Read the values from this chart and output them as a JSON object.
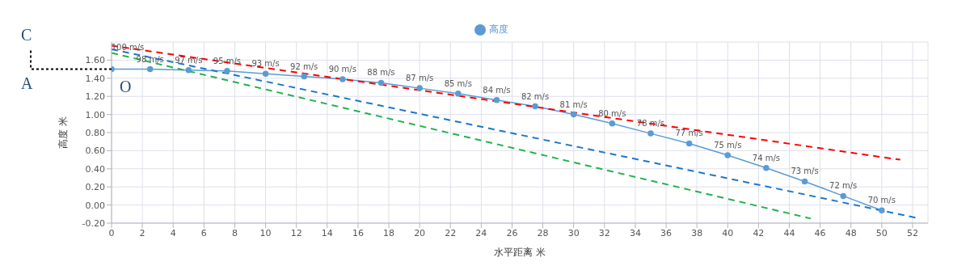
{
  "chart_data": {
    "type": "line",
    "xlabel": "水平距离 米",
    "ylabel": "高度 米",
    "xlim": [
      0,
      53
    ],
    "xticks": [
      0,
      2,
      4,
      6,
      8,
      10,
      12,
      14,
      16,
      18,
      20,
      22,
      24,
      26,
      28,
      30,
      32,
      34,
      36,
      38,
      40,
      42,
      44,
      46,
      48,
      50,
      52
    ],
    "ylim": [
      -0.2,
      1.8
    ],
    "yticks": [
      {
        "value": -0.2,
        "label": "-0.20"
      },
      {
        "value": 0,
        "label": "0.00"
      },
      {
        "value": 0.2,
        "label": "0.20"
      },
      {
        "value": 0.4,
        "label": "0.40"
      },
      {
        "value": 0.6,
        "label": "0.60"
      },
      {
        "value": 0.8,
        "label": "0.80"
      },
      {
        "value": 1,
        "label": "1.00"
      },
      {
        "value": 1.2,
        "label": "1.20"
      },
      {
        "value": 1.4,
        "label": "1.40"
      },
      {
        "value": 1.6,
        "label": "1.60"
      }
    ],
    "grid": true,
    "legend": "top",
    "annotations": [
      "C",
      "A",
      "O",
      {
        "text": "100 m/s",
        "x": 0,
        "y": 1.5
      },
      {
        "text": "98 m/s",
        "x": 2.5,
        "y": 1.5
      },
      {
        "text": "97 m/s",
        "x": 5,
        "y": 1.49
      },
      {
        "text": "95 m/s",
        "x": 7.5,
        "y": 1.48
      },
      {
        "text": "93 m/s",
        "x": 10,
        "y": 1.45
      },
      {
        "text": "92 m/s",
        "x": 12.5,
        "y": 1.42
      },
      {
        "text": "90 m/s",
        "x": 15,
        "y": 1.39
      },
      {
        "text": "88 m/s",
        "x": 17.5,
        "y": 1.35
      },
      {
        "text": "87 m/s",
        "x": 20,
        "y": 1.29
      },
      {
        "text": "85 m/s",
        "x": 22.5,
        "y": 1.23
      },
      {
        "text": "84 m/s",
        "x": 25,
        "y": 1.16
      },
      {
        "text": "82 m/s",
        "x": 27.5,
        "y": 1.09
      },
      {
        "text": "81 m/s",
        "x": 30,
        "y": 1.0
      },
      {
        "text": "80 m/s",
        "x": 32.5,
        "y": 0.9
      },
      {
        "text": "78 m/s",
        "x": 35,
        "y": 0.79
      },
      {
        "text": "77 m/s",
        "x": 37.5,
        "y": 0.68
      },
      {
        "text": "75 m/s",
        "x": 40,
        "y": 0.55
      },
      {
        "text": "74 m/s",
        "x": 42.5,
        "y": 0.41
      },
      {
        "text": "73 m/s",
        "x": 45,
        "y": 0.26
      },
      {
        "text": "72 m/s",
        "x": 47.5,
        "y": 0.1
      },
      {
        "text": "70 m/s",
        "x": 50,
        "y": -0.06
      }
    ],
    "series": [
      {
        "name": "高度",
        "color": "#5b9bd5",
        "marker": "circle",
        "x": [
          0,
          2.5,
          5,
          7.5,
          10,
          12.5,
          15,
          17.5,
          20,
          22.5,
          25,
          27.5,
          30,
          32.5,
          35,
          37.5,
          40,
          42.5,
          45,
          47.5,
          50
        ],
        "values": [
          1.5,
          1.5,
          1.49,
          1.48,
          1.45,
          1.42,
          1.39,
          1.35,
          1.29,
          1.23,
          1.16,
          1.09,
          1.0,
          0.9,
          0.79,
          0.68,
          0.55,
          0.41,
          0.26,
          0.1,
          -0.06
        ]
      },
      {
        "color": "#ff0000",
        "line_style": "dashed",
        "marker": "none",
        "x": [
          0,
          51.2
        ],
        "values": [
          1.76,
          0.5
        ]
      },
      {
        "color": "#1f77c8",
        "line_style": "dashed",
        "marker": "none",
        "x": [
          0,
          52.2
        ],
        "values": [
          1.72,
          -0.14
        ]
      },
      {
        "color": "#22b24c",
        "line_style": "dashed",
        "marker": "none",
        "x": [
          0,
          45.4
        ],
        "values": [
          1.68,
          -0.15
        ]
      }
    ]
  }
}
